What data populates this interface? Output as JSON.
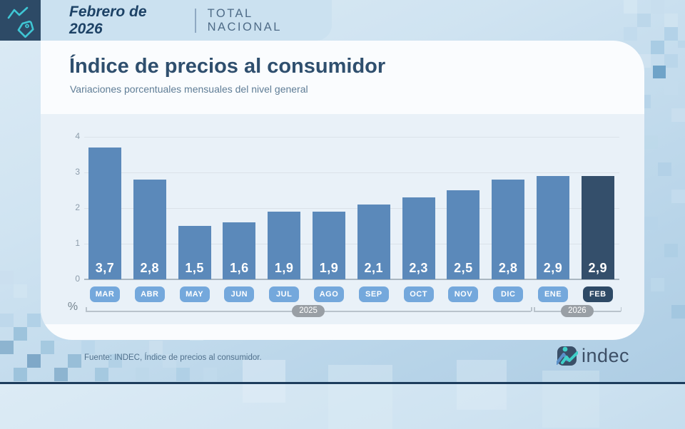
{
  "header": {
    "date": "Febrero de 2026",
    "scope": "TOTAL NACIONAL"
  },
  "card": {
    "title": "Índice de precios al consumidor",
    "subtitle": "Variaciones porcentuales mensuales del nivel general"
  },
  "chart_data": {
    "type": "bar",
    "title": "Índice de precios al consumidor",
    "subtitle": "Variaciones porcentuales mensuales del nivel general",
    "unit_label": "%",
    "categories": [
      "MAR",
      "ABR",
      "MAY",
      "JUN",
      "JUL",
      "AGO",
      "SEP",
      "OCT",
      "NOV",
      "DIC",
      "ENE",
      "FEB"
    ],
    "values": [
      3.7,
      2.8,
      1.5,
      1.6,
      1.9,
      1.9,
      2.1,
      2.3,
      2.5,
      2.8,
      2.9,
      2.9
    ],
    "value_labels": [
      "3,7",
      "2,8",
      "1,5",
      "1,6",
      "1,9",
      "1,9",
      "2,1",
      "2,3",
      "2,5",
      "2,8",
      "2,9",
      "2,9"
    ],
    "highlight_index": 11,
    "ylim": [
      0,
      4
    ],
    "yticks": [
      "0",
      "1",
      "2",
      "3",
      "4"
    ],
    "grid": true,
    "legend": false,
    "year_groups": [
      {
        "label": "2025",
        "from": 0,
        "to": 9
      },
      {
        "label": "2026",
        "from": 10,
        "to": 11
      }
    ],
    "colors": {
      "bar": "#5b89ba",
      "bar_highlight": "#344f6b",
      "chip": "#74a8dc",
      "chip_highlight": "#2e4a66",
      "accent_teal": "#3fc6d4",
      "navy": "#2d4a66",
      "year_badge": "#999fa5"
    }
  },
  "footer": {
    "source": "Fuente: INDEC, Índice de precios al consumidor.",
    "logo_text": "indec"
  }
}
